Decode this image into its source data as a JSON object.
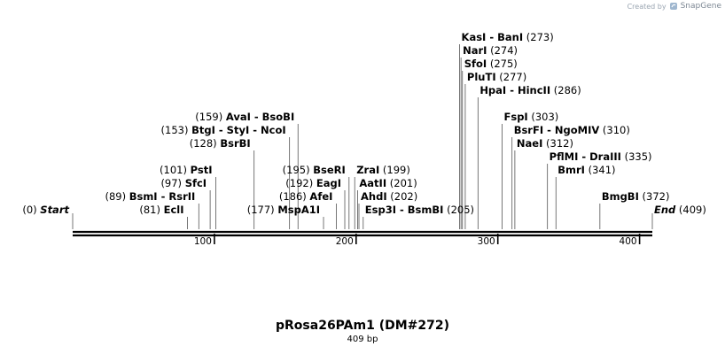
{
  "credit": {
    "created_by": "Created by",
    "brand": "SnapGene"
  },
  "map": {
    "name": "pRosa26PAm1 (DM#272)",
    "length_label": "409 bp",
    "length": 409,
    "ticks": [
      {
        "value": 100,
        "label": "100"
      },
      {
        "value": 200,
        "label": "200"
      },
      {
        "value": 300,
        "label": "300"
      },
      {
        "value": 400,
        "label": "400"
      }
    ],
    "features": [
      {
        "id": "start",
        "name": "Start",
        "pos": 0,
        "pos_label": "(0)",
        "side": "left",
        "lane": 0,
        "italic": true
      },
      {
        "id": "ecli",
        "name": "EclI",
        "pos": 81,
        "pos_label": "(81)",
        "side": "left",
        "lane": 0
      },
      {
        "id": "bsmi",
        "name": "BsmI  -  RsrII",
        "pos": 89,
        "pos_label": "(89)",
        "side": "left",
        "lane": 1
      },
      {
        "id": "sfci",
        "name": "SfcI",
        "pos": 97,
        "pos_label": "(97)",
        "side": "left",
        "lane": 2
      },
      {
        "id": "psti",
        "name": "PstI",
        "pos": 101,
        "pos_label": "(101)",
        "side": "left",
        "lane": 3
      },
      {
        "id": "bsrbi",
        "name": "BsrBI",
        "pos": 128,
        "pos_label": "(128)",
        "side": "left",
        "lane": 5
      },
      {
        "id": "btgi",
        "name": "BtgI  -  StyI  -  NcoI",
        "pos": 153,
        "pos_label": "(153)",
        "side": "left",
        "lane": 6
      },
      {
        "id": "avai",
        "name": "AvaI  -  BsoBI",
        "pos": 159,
        "pos_label": "(159)",
        "side": "left",
        "lane": 7
      },
      {
        "id": "mspa1i",
        "name": "MspA1I",
        "pos": 177,
        "pos_label": "(177)",
        "side": "left",
        "lane": 0
      },
      {
        "id": "afei",
        "name": "AfeI",
        "pos": 186,
        "pos_label": "(186)",
        "side": "left",
        "lane": 1
      },
      {
        "id": "eagi",
        "name": "EagI",
        "pos": 192,
        "pos_label": "(192)",
        "side": "left",
        "lane": 2
      },
      {
        "id": "bseri",
        "name": "BseRI",
        "pos": 195,
        "pos_label": "(195)",
        "side": "left",
        "lane": 3
      },
      {
        "id": "zrai",
        "name": "ZraI",
        "pos": 199,
        "pos_label": "(199)",
        "side": "right",
        "lane": 3
      },
      {
        "id": "aatii",
        "name": "AatII",
        "pos": 201,
        "pos_label": "(201)",
        "side": "right",
        "lane": 2
      },
      {
        "id": "ahdi",
        "name": "AhdI",
        "pos": 202,
        "pos_label": "(202)",
        "side": "right",
        "lane": 1
      },
      {
        "id": "esp3i",
        "name": "Esp3I  -  BsmBI",
        "pos": 205,
        "pos_label": "(205)",
        "side": "right",
        "lane": 0
      },
      {
        "id": "kasi",
        "name": "KasI  -  BanI",
        "pos": 273,
        "pos_label": "(273)",
        "side": "right",
        "lane": 13
      },
      {
        "id": "nari",
        "name": "NarI",
        "pos": 274,
        "pos_label": "(274)",
        "side": "right",
        "lane": 12
      },
      {
        "id": "sfoi",
        "name": "SfoI",
        "pos": 275,
        "pos_label": "(275)",
        "side": "right",
        "lane": 11
      },
      {
        "id": "pluti",
        "name": "PluTI",
        "pos": 277,
        "pos_label": "(277)",
        "side": "right",
        "lane": 10
      },
      {
        "id": "hpai",
        "name": "HpaI  -  HincII",
        "pos": 286,
        "pos_label": "(286)",
        "side": "right",
        "lane": 9
      },
      {
        "id": "fspi",
        "name": "FspI",
        "pos": 303,
        "pos_label": "(303)",
        "side": "right",
        "lane": 7
      },
      {
        "id": "bsrfi",
        "name": "BsrFI  -  NgoMIV",
        "pos": 310,
        "pos_label": "(310)",
        "side": "right",
        "lane": 6
      },
      {
        "id": "naei",
        "name": "NaeI",
        "pos": 312,
        "pos_label": "(312)",
        "side": "right",
        "lane": 5
      },
      {
        "id": "pflmi",
        "name": "PflMI  -  DraIII",
        "pos": 335,
        "pos_label": "(335)",
        "side": "right",
        "lane": 4
      },
      {
        "id": "bmri",
        "name": "BmrI",
        "pos": 341,
        "pos_label": "(341)",
        "side": "right",
        "lane": 3
      },
      {
        "id": "bmgbi",
        "name": "BmgBI",
        "pos": 372,
        "pos_label": "(372)",
        "side": "right",
        "lane": 1
      },
      {
        "id": "end",
        "name": "End",
        "pos": 409,
        "pos_label": "(409)",
        "side": "right",
        "lane": 0,
        "italic": true
      }
    ]
  }
}
